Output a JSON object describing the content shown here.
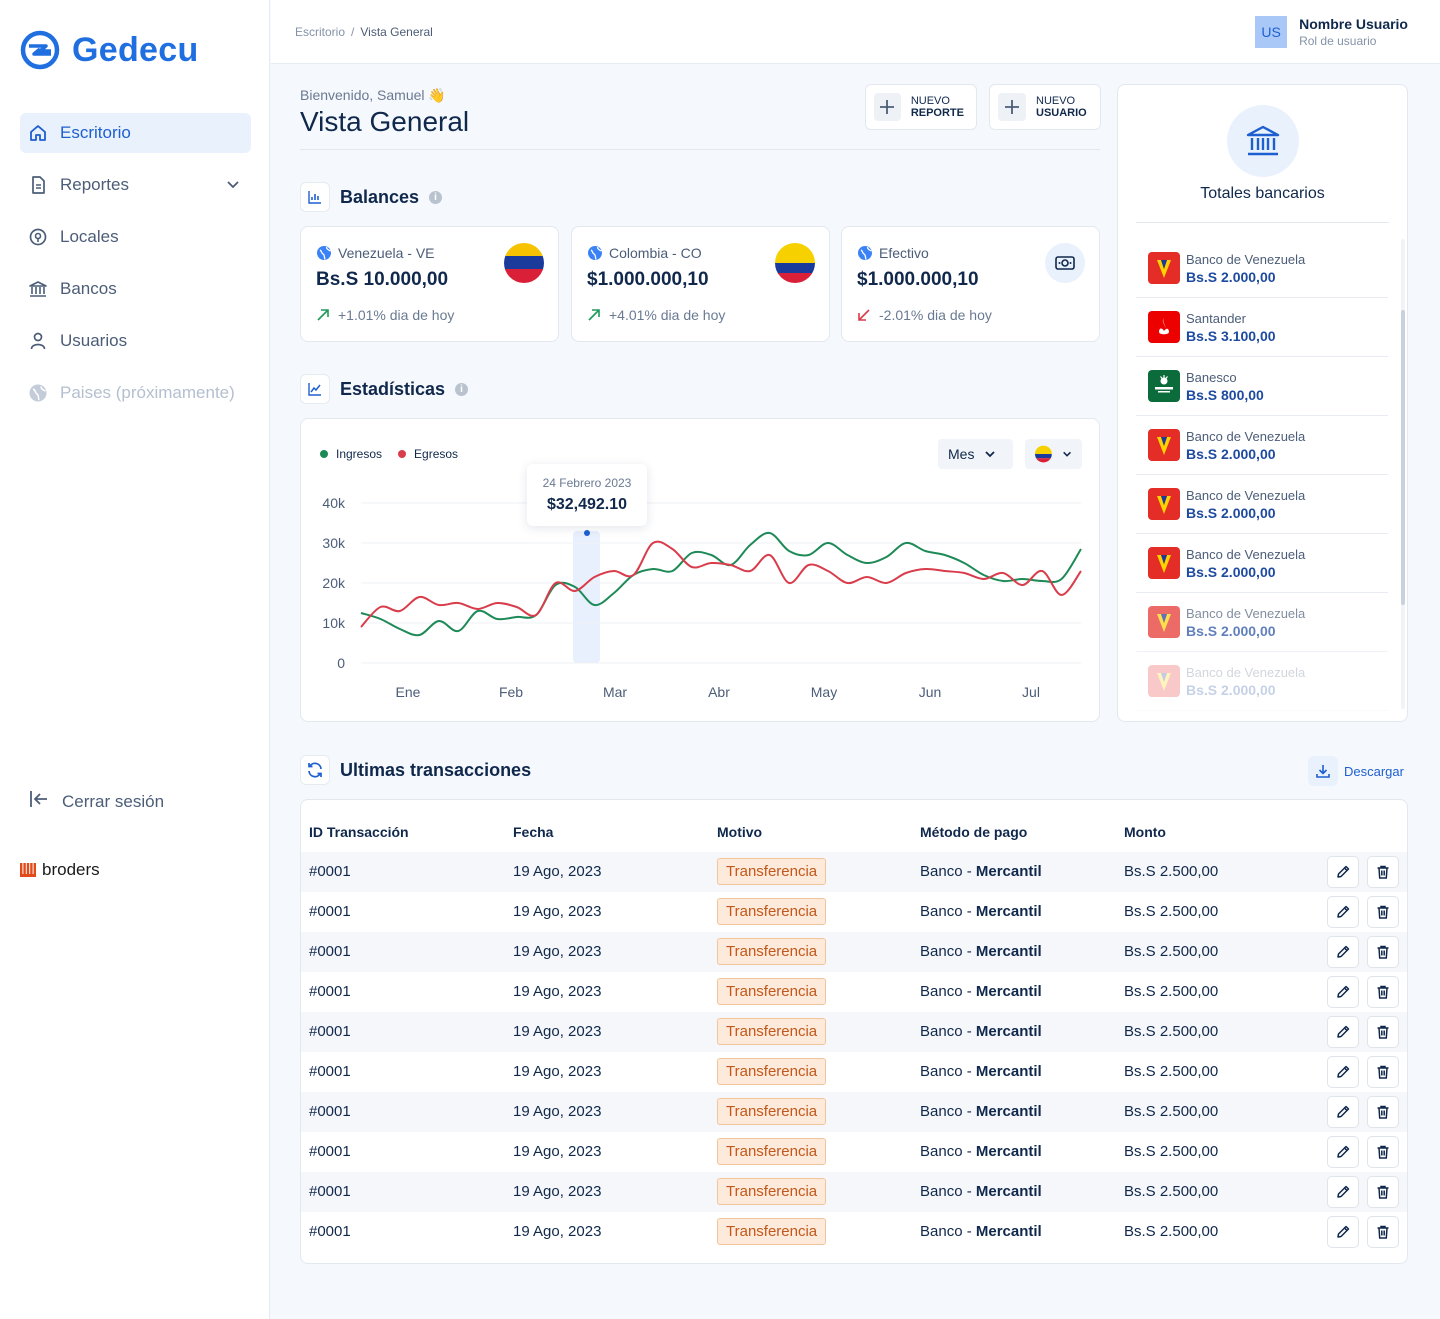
{
  "app": {
    "name": "Gedecu"
  },
  "sidebar": {
    "items": [
      {
        "label": "Escritorio",
        "icon": "home-icon"
      },
      {
        "label": "Reportes",
        "icon": "document-icon"
      },
      {
        "label": "Locales",
        "icon": "location-icon"
      },
      {
        "label": "Bancos",
        "icon": "bank-icon"
      },
      {
        "label": "Usuarios",
        "icon": "user-icon"
      },
      {
        "label": "Paises (próximamente)",
        "icon": "globe-icon"
      }
    ],
    "logout": "Cerrar sesión",
    "brand": "broders"
  },
  "header": {
    "breadcrumb": [
      "Escritorio",
      "Vista General"
    ],
    "user": {
      "initials": "US",
      "name": "Nombre Usuario",
      "role": "Rol de usuario"
    }
  },
  "page": {
    "welcome": "Bienvenido, Samuel 👋",
    "title": "Vista General",
    "buttons": [
      {
        "line1": "NUEVO",
        "line2": "REPORTE"
      },
      {
        "line1": "NUEVO",
        "line2": "USUARIO"
      }
    ]
  },
  "balances": {
    "title": "Balances",
    "cards": [
      {
        "region": "Venezuela - VE",
        "amount": "Bs.S 10.000,00",
        "delta": "+1.01% dia de hoy",
        "trend": "up"
      },
      {
        "region": "Colombia - CO",
        "amount": "$1.000.000,10",
        "delta": "+4.01% dia de hoy",
        "trend": "up"
      },
      {
        "region": "Efectivo",
        "amount": "$1.000.000,10",
        "delta": "-2.01% dia de hoy",
        "trend": "down"
      }
    ]
  },
  "stats": {
    "title": "Estadísticas",
    "period_select": "Mes",
    "tooltip": {
      "date": "24 Febrero 2023",
      "value": "$32,492.10"
    }
  },
  "chart_data": {
    "type": "line",
    "x_labels": [
      "Ene",
      "Feb",
      "Mar",
      "Abr",
      "May",
      "Jun",
      "Jul"
    ],
    "y_ticks": [
      "0",
      "10k",
      "20k",
      "30k",
      "40k"
    ],
    "ylim": [
      0,
      40000
    ],
    "legend_placement": "top-left",
    "series": [
      {
        "name": "Ingresos",
        "color": "#1e8a57",
        "values": [
          12500,
          11000,
          8500,
          7000,
          10500,
          8000,
          13000,
          11000,
          11500,
          12000,
          19500,
          19000,
          14500,
          17500,
          22000,
          23500,
          23000,
          27500,
          27000,
          24500,
          29500,
          32500,
          28000,
          27000,
          30000,
          27000,
          25000,
          26500,
          30000,
          28000,
          27000,
          25000,
          22000,
          20500,
          21000,
          20500,
          21000,
          28500
        ]
      },
      {
        "name": "Egresos",
        "color": "#d93c4a",
        "values": [
          9000,
          14000,
          13000,
          16500,
          14500,
          15000,
          13500,
          15000,
          14000,
          12000,
          20000,
          18000,
          21500,
          23000,
          22000,
          30000,
          28500,
          24000,
          25000,
          24500,
          23000,
          27000,
          20000,
          24500,
          23000,
          20000,
          21500,
          20000,
          22500,
          23500,
          23000,
          22500,
          21000,
          22500,
          19500,
          23000,
          17000,
          23000
        ]
      }
    ]
  },
  "bank_totals": {
    "title": "Totales bancarios",
    "banks": [
      {
        "name": "Banco de Venezuela",
        "amount": "Bs.S 2.000,00",
        "logo": "bdv"
      },
      {
        "name": "Santander",
        "amount": "Bs.S 3.100,00",
        "logo": "santander"
      },
      {
        "name": "Banesco",
        "amount": "Bs.S 800,00",
        "logo": "banesco"
      },
      {
        "name": "Banco de Venezuela",
        "amount": "Bs.S 2.000,00",
        "logo": "bdv"
      },
      {
        "name": "Banco de Venezuela",
        "amount": "Bs.S 2.000,00",
        "logo": "bdv"
      },
      {
        "name": "Banco de Venezuela",
        "amount": "Bs.S 2.000,00",
        "logo": "bdv"
      },
      {
        "name": "Banco de Venezuela",
        "amount": "Bs.S 2.000,00",
        "logo": "bdv"
      },
      {
        "name": "Banco de Venezuela",
        "amount": "Bs.S 2.000,00",
        "logo": "bdv"
      }
    ]
  },
  "transactions": {
    "title": "Ultimas transacciones",
    "download": "Descargar",
    "columns": [
      "ID Transacción",
      "Fecha",
      "Motivo",
      "Método de pago",
      "Monto"
    ],
    "rows": [
      {
        "id": "#0001",
        "date": "19 Ago, 2023",
        "reason": "Transferencia",
        "method_prefix": "Banco - ",
        "method_bank": "Mercantil",
        "amount": "Bs.S 2.500,00"
      },
      {
        "id": "#0001",
        "date": "19 Ago, 2023",
        "reason": "Transferencia",
        "method_prefix": "Banco - ",
        "method_bank": "Mercantil",
        "amount": "Bs.S 2.500,00"
      },
      {
        "id": "#0001",
        "date": "19 Ago, 2023",
        "reason": "Transferencia",
        "method_prefix": "Banco - ",
        "method_bank": "Mercantil",
        "amount": "Bs.S 2.500,00"
      },
      {
        "id": "#0001",
        "date": "19 Ago, 2023",
        "reason": "Transferencia",
        "method_prefix": "Banco - ",
        "method_bank": "Mercantil",
        "amount": "Bs.S 2.500,00"
      },
      {
        "id": "#0001",
        "date": "19 Ago, 2023",
        "reason": "Transferencia",
        "method_prefix": "Banco - ",
        "method_bank": "Mercantil",
        "amount": "Bs.S 2.500,00"
      },
      {
        "id": "#0001",
        "date": "19 Ago, 2023",
        "reason": "Transferencia",
        "method_prefix": "Banco - ",
        "method_bank": "Mercantil",
        "amount": "Bs.S 2.500,00"
      },
      {
        "id": "#0001",
        "date": "19 Ago, 2023",
        "reason": "Transferencia",
        "method_prefix": "Banco - ",
        "method_bank": "Mercantil",
        "amount": "Bs.S 2.500,00"
      },
      {
        "id": "#0001",
        "date": "19 Ago, 2023",
        "reason": "Transferencia",
        "method_prefix": "Banco - ",
        "method_bank": "Mercantil",
        "amount": "Bs.S 2.500,00"
      },
      {
        "id": "#0001",
        "date": "19 Ago, 2023",
        "reason": "Transferencia",
        "method_prefix": "Banco - ",
        "method_bank": "Mercantil",
        "amount": "Bs.S 2.500,00"
      },
      {
        "id": "#0001",
        "date": "19 Ago, 2023",
        "reason": "Transferencia",
        "method_prefix": "Banco - ",
        "method_bank": "Mercantil",
        "amount": "Bs.S 2.500,00"
      }
    ]
  }
}
